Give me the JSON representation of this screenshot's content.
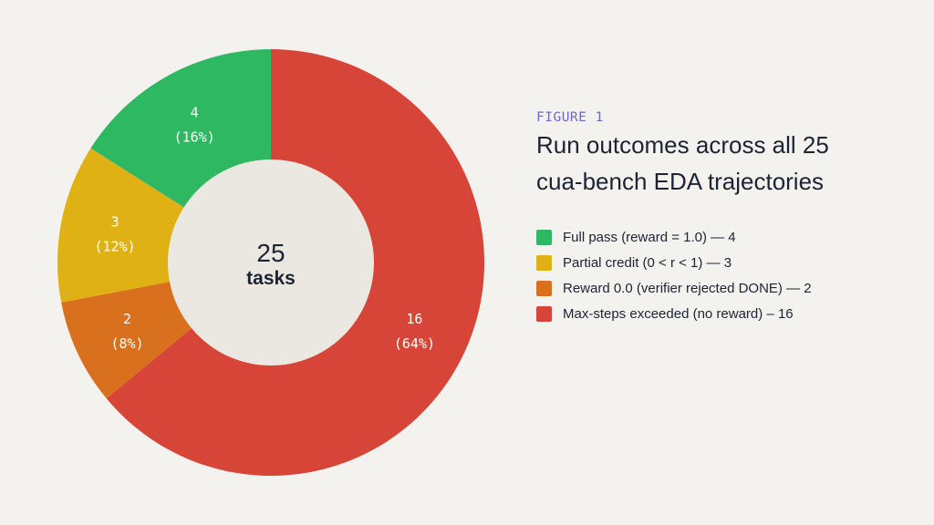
{
  "figure": {
    "kicker": "FIGURE 1",
    "title_lines": [
      "Run outcomes across all 25",
      "cua-bench EDA trajectories"
    ]
  },
  "center": {
    "value": "25",
    "unit": "tasks"
  },
  "colors": {
    "background": "#f4f2ee",
    "center_fill": "#ebe8e1",
    "accent": "#6f67c9"
  },
  "chart_data": {
    "type": "pie",
    "donut": true,
    "total": 25,
    "slices": [
      {
        "name": "Max-steps exceeded (no reward)",
        "value": 16,
        "percent": 64,
        "label_value": "16",
        "label_pct": "(64%)",
        "color": "#d64538"
      },
      {
        "name": "Reward 0.0 (verifier rejected DONE)",
        "value": 2,
        "percent": 8,
        "label_value": "2",
        "label_pct": "(8%)",
        "color": "#d8701e"
      },
      {
        "name": "Partial credit (0 < r < 1)",
        "value": 3,
        "percent": 12,
        "label_value": "3",
        "label_pct": "(12%)",
        "color": "#e0b115"
      },
      {
        "name": "Full pass (reward = 1.0)",
        "value": 4,
        "percent": 16,
        "label_value": "4",
        "label_pct": "(16%)",
        "color": "#2fb862"
      }
    ],
    "legend": [
      {
        "text": "Full pass (reward = 1.0) — 4",
        "color": "#2fb862"
      },
      {
        "text": "Partial credit (0 < r < 1) — 3",
        "color": "#e0b115"
      },
      {
        "text": "Reward 0.0 (verifier rejected DONE) — 2",
        "color": "#d8701e"
      },
      {
        "text": "Max-steps exceeded (no reward) – 16",
        "color": "#d64538"
      }
    ],
    "legend_position": "right"
  }
}
